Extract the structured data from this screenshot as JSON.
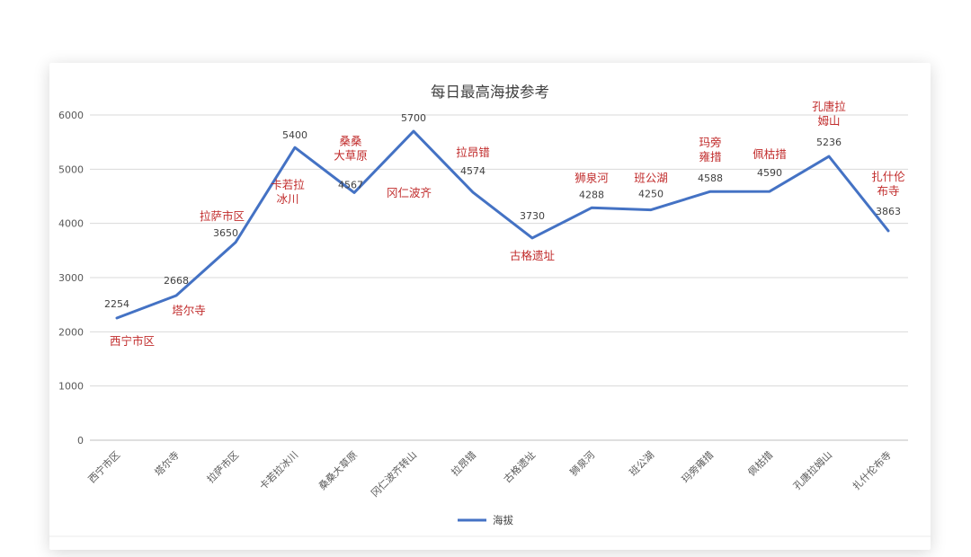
{
  "chart_data": {
    "type": "line",
    "title": "每日最高海拔参考",
    "xlabel": "",
    "ylabel": "",
    "ylim": [
      0,
      6000
    ],
    "yticks": [
      0,
      1000,
      2000,
      3000,
      4000,
      5000,
      6000
    ],
    "grid": true,
    "legend": {
      "position": "bottom",
      "entries": [
        "海拔"
      ]
    },
    "line_color": "#4472c4",
    "annotation_color": "#c12c2c",
    "value_label_color": "#404040",
    "axis_label_color": "#595959",
    "categories": [
      "西宁市区",
      "塔尔寺",
      "拉萨市区",
      "卡若拉冰川",
      "桑桑大草原",
      "冈仁波齐转山",
      "拉昂错",
      "古格遗址",
      "狮泉河",
      "班公湖",
      "玛旁雍措",
      "佩枯措",
      "孔唐拉姆山",
      "扎什伦布寺"
    ],
    "series": [
      {
        "name": "海拔",
        "values": [
          2254,
          2668,
          3650,
          5400,
          4567,
          5700,
          4574,
          3730,
          4288,
          4250,
          4588,
          4590,
          5236,
          3863
        ]
      }
    ],
    "point_annotations": [
      {
        "lines": [
          "西宁市区"
        ],
        "offset": [
          17,
          26
        ],
        "value_offset": [
          0,
          -16
        ]
      },
      {
        "lines": [
          "塔尔寺"
        ],
        "offset": [
          14,
          17
        ],
        "value_offset": [
          0,
          -17
        ]
      },
      {
        "lines": [
          "拉萨市区"
        ],
        "offset": [
          -15,
          -29
        ],
        "value_offset": [
          -11,
          -11
        ]
      },
      {
        "lines": [
          "卡若拉",
          "冰川"
        ],
        "offset": [
          -8,
          50
        ],
        "value_offset": [
          0,
          -14
        ]
      },
      {
        "lines": [
          "桑桑",
          "大草原"
        ],
        "offset": [
          -4,
          -49
        ],
        "value_offset": [
          -4,
          -9
        ]
      },
      {
        "lines": [
          "冈仁波齐"
        ],
        "offset": [
          -5,
          69
        ],
        "value_offset": [
          0,
          -15
        ]
      },
      {
        "lines": [
          "拉昂错"
        ],
        "offset": [
          0,
          -44
        ],
        "value_offset": [
          0,
          -24
        ]
      },
      {
        "lines": [
          "古格遗址"
        ],
        "offset": [
          0,
          20
        ],
        "value_offset": [
          0,
          -25
        ]
      },
      {
        "lines": [
          "狮泉河"
        ],
        "offset": [
          0,
          -33
        ],
        "value_offset": [
          0,
          -15
        ]
      },
      {
        "lines": [
          "班公湖"
        ],
        "offset": [
          0,
          -35
        ],
        "value_offset": [
          0,
          -18
        ]
      },
      {
        "lines": [
          "玛旁",
          "雍措"
        ],
        "offset": [
          0,
          -46
        ],
        "value_offset": [
          0,
          -15
        ]
      },
      {
        "lines": [
          "佩枯措"
        ],
        "offset": [
          0,
          -41
        ],
        "value_offset": [
          0,
          -21
        ]
      },
      {
        "lines": [
          "孔唐拉",
          "姆山"
        ],
        "offset": [
          0,
          -47
        ],
        "value_offset": [
          0,
          -16
        ]
      },
      {
        "lines": [
          "扎什伦",
          "布寺"
        ],
        "offset": [
          0,
          -52
        ],
        "value_offset": [
          0,
          -22
        ]
      }
    ]
  }
}
